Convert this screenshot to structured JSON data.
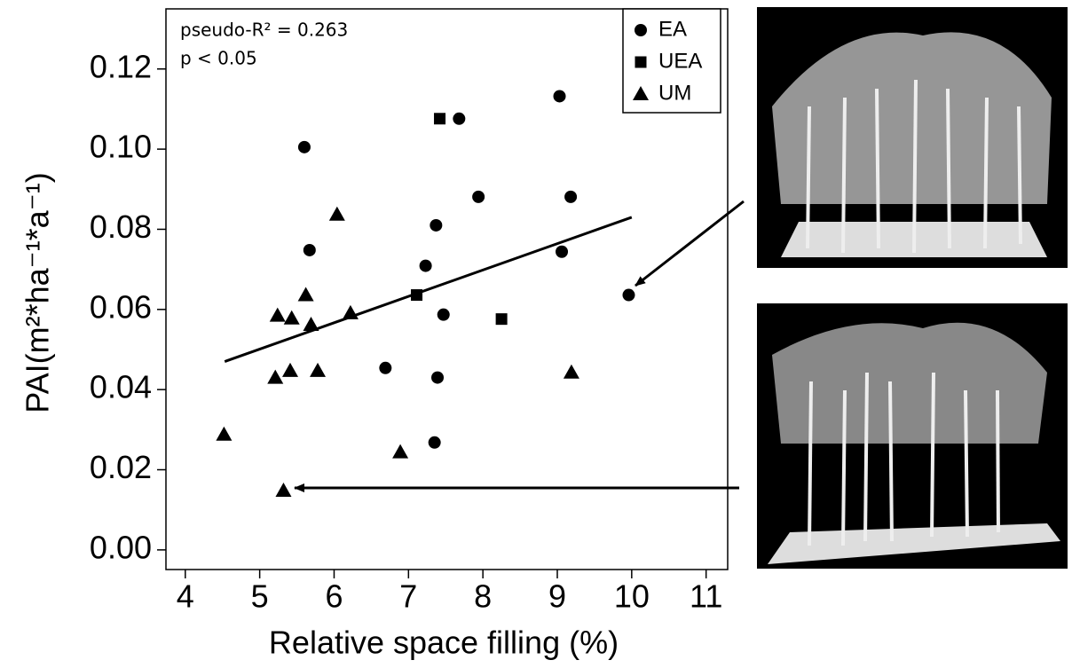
{
  "chart_data": {
    "type": "scatter",
    "xlabel": "Relative space filling (%)",
    "ylabel": "PAI(m²*ha⁻¹*a⁻¹)",
    "annotations": [
      "pseudo-R² = 0.263",
      "p < 0.05"
    ],
    "xlim": [
      3.74,
      11.29
    ],
    "ylim": [
      -0.0049,
      0.135
    ],
    "xticks": [
      4,
      5,
      6,
      7,
      8,
      9,
      10,
      11
    ],
    "yticks": [
      {
        "value": 0,
        "label": "0.00"
      },
      {
        "value": 0.02,
        "label": "0.02"
      },
      {
        "value": 0.04,
        "label": "0.04"
      },
      {
        "value": 0.06,
        "label": "0.06"
      },
      {
        "value": 0.08,
        "label": "0.08"
      },
      {
        "value": 0.1,
        "label": "0.10"
      },
      {
        "value": 0.12,
        "label": "0.12"
      }
    ],
    "legend": "top-right",
    "series": [
      {
        "name": "EA",
        "marker": "circle",
        "color": "#000000",
        "x": [
          5.6,
          5.67,
          6.69,
          7.35,
          7.39,
          7.37,
          7.23,
          7.47,
          7.68,
          7.94,
          9.03,
          9.06,
          9.18,
          9.96
        ],
        "values": [
          0.1005,
          0.0748,
          0.0454,
          0.0268,
          0.043,
          0.081,
          0.0709,
          0.0587,
          0.1076,
          0.0881,
          0.1132,
          0.0744,
          0.0881,
          0.0636
        ]
      },
      {
        "name": "UEA",
        "marker": "square",
        "color": "#000000",
        "x": [
          7.42,
          7.11,
          8.25
        ],
        "values": [
          0.1076,
          0.0636,
          0.0576
        ]
      },
      {
        "name": "UM",
        "marker": "triangle",
        "color": "#000000",
        "x": [
          4.52,
          5.32,
          5.21,
          5.41,
          5.24,
          5.43,
          5.62,
          5.69,
          5.78,
          6.04,
          6.22,
          6.89,
          9.19
        ],
        "values": [
          0.0288,
          0.0148,
          0.043,
          0.0447,
          0.0585,
          0.0578,
          0.0636,
          0.0562,
          0.0447,
          0.0837,
          0.0591,
          0.0244,
          0.0443
        ]
      }
    ],
    "fit_line": {
      "x": [
        4.53,
        10.0
      ],
      "values": [
        0.047,
        0.083
      ]
    }
  }
}
